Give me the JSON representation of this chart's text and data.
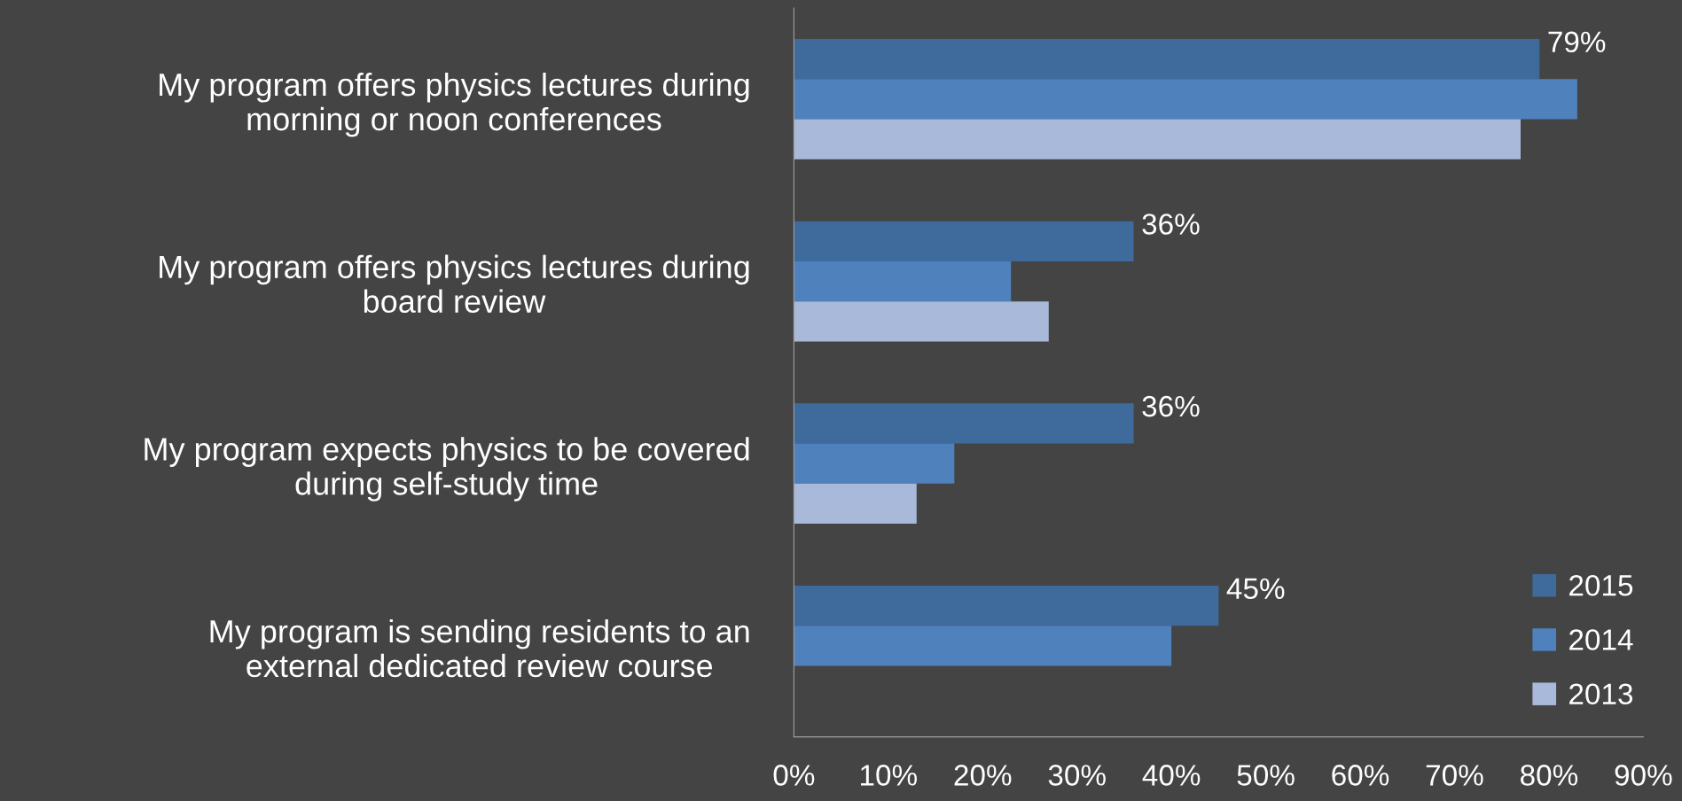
{
  "chart_data": {
    "type": "bar",
    "orientation": "horizontal",
    "categories": [
      "My program offers physics lectures during\nmorning or noon conferences",
      "My program offers physics lectures during\nboard review",
      "My program expects physics to be covered\nduring self-study time",
      "My program is sending residents to an\nexternal dedicated review course"
    ],
    "series": [
      {
        "name": "2015",
        "color": "#3f6a9c",
        "values": [
          79,
          36,
          36,
          45
        ],
        "value_labels": [
          "79%",
          "36%",
          "36%",
          "45%"
        ]
      },
      {
        "name": "2014",
        "color": "#4f81bd",
        "values": [
          83,
          23,
          17,
          40
        ]
      },
      {
        "name": "2013",
        "color": "#a9b9d9",
        "values": [
          77,
          27,
          13,
          null
        ]
      }
    ],
    "xlim": [
      0,
      90
    ],
    "xticks": [
      {
        "value": 0,
        "label": "0%"
      },
      {
        "value": 10,
        "label": "10%"
      },
      {
        "value": 20,
        "label": "20%"
      },
      {
        "value": 30,
        "label": "30%"
      },
      {
        "value": 40,
        "label": "40%"
      },
      {
        "value": 50,
        "label": "50%"
      },
      {
        "value": 60,
        "label": "60%"
      },
      {
        "value": 70,
        "label": "70%"
      },
      {
        "value": 80,
        "label": "80%"
      },
      {
        "value": 90,
        "label": "90%"
      }
    ],
    "grid": false,
    "legend": "bottom right"
  }
}
